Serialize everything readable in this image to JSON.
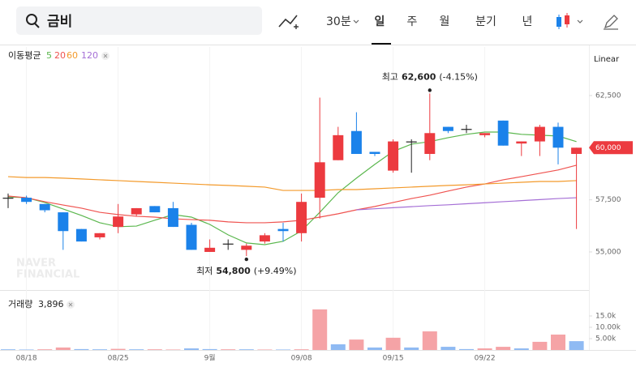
{
  "toolbar": {
    "search": "금비",
    "interval": "30분",
    "periods": [
      "일",
      "주",
      "월",
      "분기",
      "년"
    ]
  },
  "chart_data": {
    "type": "candlestick",
    "categories": [
      null,
      "08/18",
      null,
      null,
      null,
      null,
      "08/25",
      null,
      null,
      null,
      null,
      "9월",
      null,
      null,
      null,
      null,
      "09/08",
      null,
      null,
      null,
      null,
      "09/15",
      null,
      null,
      null,
      null,
      "09/22",
      null,
      null,
      null,
      null,
      null
    ],
    "open": [
      57600,
      57600,
      57300,
      56900,
      56100,
      55700,
      56200,
      56800,
      57200,
      57100,
      56300,
      55000,
      55400,
      55100,
      55500,
      56100,
      55900,
      57600,
      59400,
      60800,
      59800,
      58900,
      60300,
      59700,
      61000,
      60900,
      60600,
      61300,
      60200,
      60300,
      61000,
      59700
    ],
    "high": [
      57800,
      57700,
      57300,
      56900,
      56100,
      55900,
      57300,
      57100,
      57200,
      57400,
      56400,
      55600,
      55600,
      55400,
      55900,
      56400,
      57800,
      62400,
      61000,
      61700,
      59800,
      60400,
      60400,
      62600,
      61000,
      61100,
      60700,
      61300,
      60300,
      61100,
      61200,
      60000
    ],
    "low": [
      57100,
      57300,
      56900,
      55100,
      55500,
      55600,
      55900,
      56700,
      56900,
      56200,
      55100,
      55000,
      55100,
      54800,
      55400,
      55500,
      55500,
      56600,
      59400,
      59700,
      59600,
      58800,
      58800,
      59400,
      60700,
      60700,
      60500,
      60100,
      59600,
      59600,
      59200,
      56100
    ],
    "close": [
      57600,
      57400,
      57000,
      56000,
      55500,
      55900,
      56700,
      57100,
      56900,
      56200,
      55100,
      55200,
      55400,
      55300,
      55800,
      56000,
      57400,
      59300,
      60600,
      59700,
      59700,
      60300,
      60300,
      60700,
      60800,
      60900,
      60700,
      60100,
      60300,
      61000,
      60000,
      60000
    ],
    "up_color": "#ec3a3f",
    "down_color": "#1b82ea",
    "flat_color": "#222222",
    "ylim": [
      53250,
      64830
    ],
    "yticks": [
      {
        "value": 62500,
        "label": "62,500"
      },
      {
        "value": 57500,
        "label": "57,500"
      },
      {
        "value": 55000,
        "label": "55,000"
      }
    ],
    "scale": "Linear",
    "last_price": {
      "value": 60000,
      "label": "60,000"
    },
    "ma_label": "이동평균",
    "moving_averages": [
      {
        "name": "5",
        "color": "#5bb74e",
        "values": [
          57640,
          57600,
          57370,
          57060,
          56750,
          56400,
          56210,
          56240,
          56520,
          56790,
          56670,
          56320,
          55820,
          55430,
          55350,
          55510,
          56010,
          56900,
          57840,
          58540,
          59200,
          59820,
          60170,
          60290,
          60480,
          60640,
          60750,
          60750,
          60640,
          60600,
          60560,
          60290
        ]
      },
      {
        "name": "20",
        "color": "#ef5350",
        "values": [
          57680,
          57600,
          57410,
          57250,
          57100,
          56900,
          56790,
          56710,
          56670,
          56590,
          56550,
          56520,
          56440,
          56400,
          56400,
          56440,
          56520,
          56670,
          56830,
          57020,
          57180,
          57370,
          57560,
          57720,
          57920,
          58110,
          58260,
          58460,
          58610,
          58770,
          58930,
          59160
        ]
      },
      {
        "name": "60",
        "color": "#f39a2b",
        "values": [
          58610,
          58570,
          58570,
          58540,
          58500,
          58460,
          58420,
          58380,
          58340,
          58300,
          58260,
          58220,
          58190,
          58150,
          58110,
          57950,
          57950,
          57950,
          57990,
          57990,
          58030,
          58070,
          58110,
          58150,
          58190,
          58220,
          58260,
          58300,
          58340,
          58380,
          58380,
          58420
        ]
      },
      {
        "name": "120",
        "color": "#a56fd6",
        "values": [
          null,
          null,
          null,
          null,
          null,
          null,
          null,
          null,
          null,
          null,
          null,
          null,
          null,
          null,
          null,
          null,
          null,
          null,
          null,
          57020,
          57070,
          57120,
          57170,
          57220,
          57260,
          57310,
          57360,
          57410,
          57460,
          57510,
          57560,
          57600
        ]
      }
    ],
    "high_note": {
      "prefix": "최고",
      "value_label": "62,600",
      "change": "(-4.15%)"
    },
    "low_note": {
      "prefix": "최저",
      "value_label": "54,800",
      "change": "(+9.49%)"
    },
    "watermark": [
      "NAVER",
      "FINANCIAL"
    ],
    "volume": {
      "name": "거래량",
      "last_label": "3,896",
      "values": [
        300,
        200,
        300,
        1100,
        400,
        300,
        500,
        300,
        300,
        200,
        700,
        400,
        300,
        300,
        200,
        200,
        300,
        17900,
        2500,
        4600,
        1100,
        5400,
        1100,
        8200,
        1400,
        400,
        700,
        1400,
        700,
        3600,
        6800,
        3896
      ],
      "colors": [
        "#8fbaf3",
        "#8fbaf3",
        "#f5a3a6",
        "#f5a3a6",
        "#8fbaf3",
        "#8fbaf3",
        "#f5a3a6",
        "#8fbaf3",
        "#f5a3a6",
        "#f5a3a6",
        "#8fbaf3",
        "#8fbaf3",
        "#f5a3a6",
        "#8fbaf3",
        "#f5a3a6",
        "#8fbaf3",
        "#f5a3a6",
        "#f5a3a6",
        "#8fbaf3",
        "#f5a3a6",
        "#8fbaf3",
        "#f5a3a6",
        "#8fbaf3",
        "#f5a3a6",
        "#8fbaf3",
        "#8fbaf3",
        "#f5a3a6",
        "#f5a3a6",
        "#8fbaf3",
        "#f5a3a6",
        "#f5a3a6",
        "#8fbaf3"
      ],
      "ylim": [
        0,
        25000
      ],
      "yticks": [
        {
          "value": 15000,
          "label": "15.0k"
        },
        {
          "value": 10000,
          "label": "10.00k"
        },
        {
          "value": 5000,
          "label": "5.00k"
        }
      ]
    }
  }
}
